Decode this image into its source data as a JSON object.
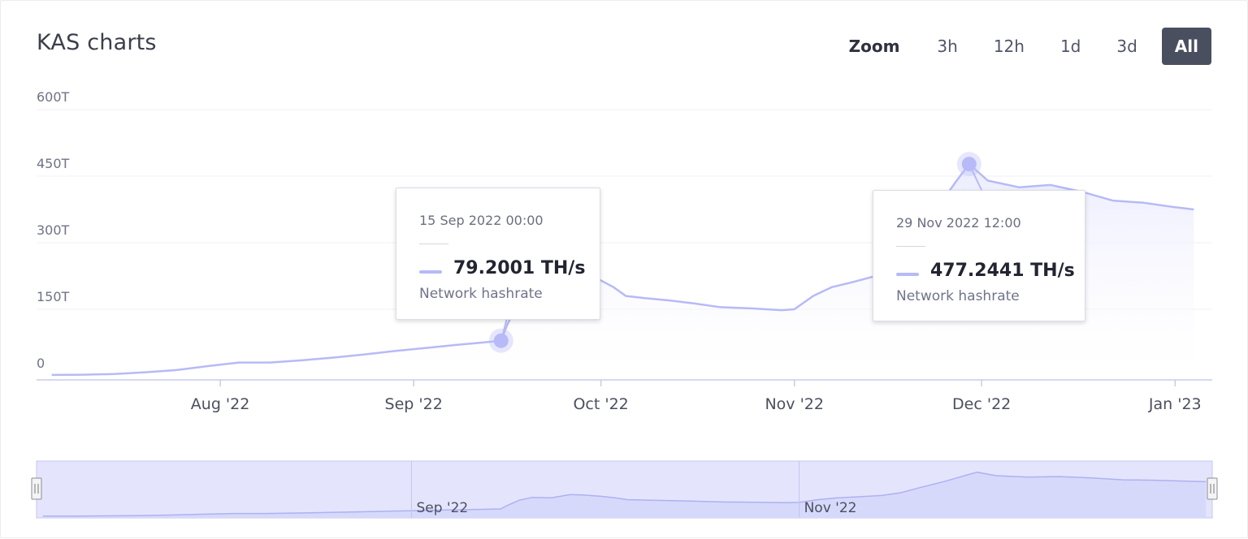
{
  "header": {
    "title": "KAS charts",
    "zoom_label": "Zoom",
    "zoom_options": [
      "3h",
      "12h",
      "1d",
      "3d",
      "All"
    ],
    "zoom_selected": "All"
  },
  "colors": {
    "line": "#b7baf6",
    "area_top": "#e9eafd",
    "navigator_fill": "#d7d9fb",
    "navigator_mask": "#e4e5fd",
    "button_active": "#4a4f60"
  },
  "chart_data": {
    "type": "area",
    "series": [
      {
        "name": "Network hashrate",
        "unit": "TH/s",
        "points": [
          [
            "2022-07-05",
            2
          ],
          [
            "2022-07-10",
            2.5
          ],
          [
            "2022-07-15",
            4
          ],
          [
            "2022-07-20",
            8
          ],
          [
            "2022-07-25",
            13
          ],
          [
            "2022-07-30",
            22
          ],
          [
            "2022-08-04",
            30
          ],
          [
            "2022-08-09",
            30
          ],
          [
            "2022-08-14",
            35
          ],
          [
            "2022-08-19",
            41
          ],
          [
            "2022-08-24",
            48
          ],
          [
            "2022-08-29",
            56
          ],
          [
            "2022-09-03",
            63
          ],
          [
            "2022-09-08",
            70
          ],
          [
            "2022-09-12",
            75
          ],
          [
            "2022-09-15",
            79.2001
          ],
          [
            "2022-09-16",
            115
          ],
          [
            "2022-09-18",
            175
          ],
          [
            "2022-09-20",
            205
          ],
          [
            "2022-09-23",
            200
          ],
          [
            "2022-09-26",
            235
          ],
          [
            "2022-09-28",
            230
          ],
          [
            "2022-10-01",
            215
          ],
          [
            "2022-10-03",
            200
          ],
          [
            "2022-10-05",
            180
          ],
          [
            "2022-10-08",
            175
          ],
          [
            "2022-10-12",
            170
          ],
          [
            "2022-10-16",
            163
          ],
          [
            "2022-10-20",
            155
          ],
          [
            "2022-10-25",
            152
          ],
          [
            "2022-10-30",
            148
          ],
          [
            "2022-11-01",
            150
          ],
          [
            "2022-11-04",
            180
          ],
          [
            "2022-11-07",
            200
          ],
          [
            "2022-11-10",
            210
          ],
          [
            "2022-11-14",
            225
          ],
          [
            "2022-11-17",
            255
          ],
          [
            "2022-11-20",
            310
          ],
          [
            "2022-11-24",
            380
          ],
          [
            "2022-11-27",
            440
          ],
          [
            "2022-11-29",
            477.2441
          ],
          [
            "2022-12-02",
            440
          ],
          [
            "2022-12-07",
            425
          ],
          [
            "2022-12-12",
            430
          ],
          [
            "2022-12-17",
            415
          ],
          [
            "2022-12-22",
            395
          ],
          [
            "2022-12-27",
            390
          ],
          [
            "2023-01-01",
            380
          ],
          [
            "2023-01-04",
            375
          ]
        ]
      }
    ],
    "ylim": [
      0,
      600
    ],
    "y_ticks": [
      "0",
      "150T",
      "300T",
      "450T",
      "600T"
    ],
    "x_range": [
      "2022-07-04",
      "2023-01-05"
    ],
    "x_ticks": [
      {
        "date": "2022-08-01",
        "label": "Aug '22"
      },
      {
        "date": "2022-09-01",
        "label": "Sep '22"
      },
      {
        "date": "2022-10-01",
        "label": "Oct '22"
      },
      {
        "date": "2022-11-01",
        "label": "Nov '22"
      },
      {
        "date": "2022-12-01",
        "label": "Dec '22"
      },
      {
        "date": "2023-01-01",
        "label": "Jan '23"
      }
    ],
    "navigator_ticks": [
      {
        "date": "2022-09-01",
        "label": "Sep '22"
      },
      {
        "date": "2022-11-01",
        "label": "Nov '22"
      }
    ],
    "grid": true,
    "tooltips": [
      {
        "date_label": "15 Sep 2022 00:00",
        "value_label": "79.2001 TH/s",
        "series_label": "Network hashrate",
        "date": "2022-09-15",
        "value": 79.2001
      },
      {
        "date_label": "29 Nov 2022 12:00",
        "value_label": "477.2441 TH/s",
        "series_label": "Network hashrate",
        "date": "2022-11-29",
        "value": 477.2441
      }
    ]
  }
}
